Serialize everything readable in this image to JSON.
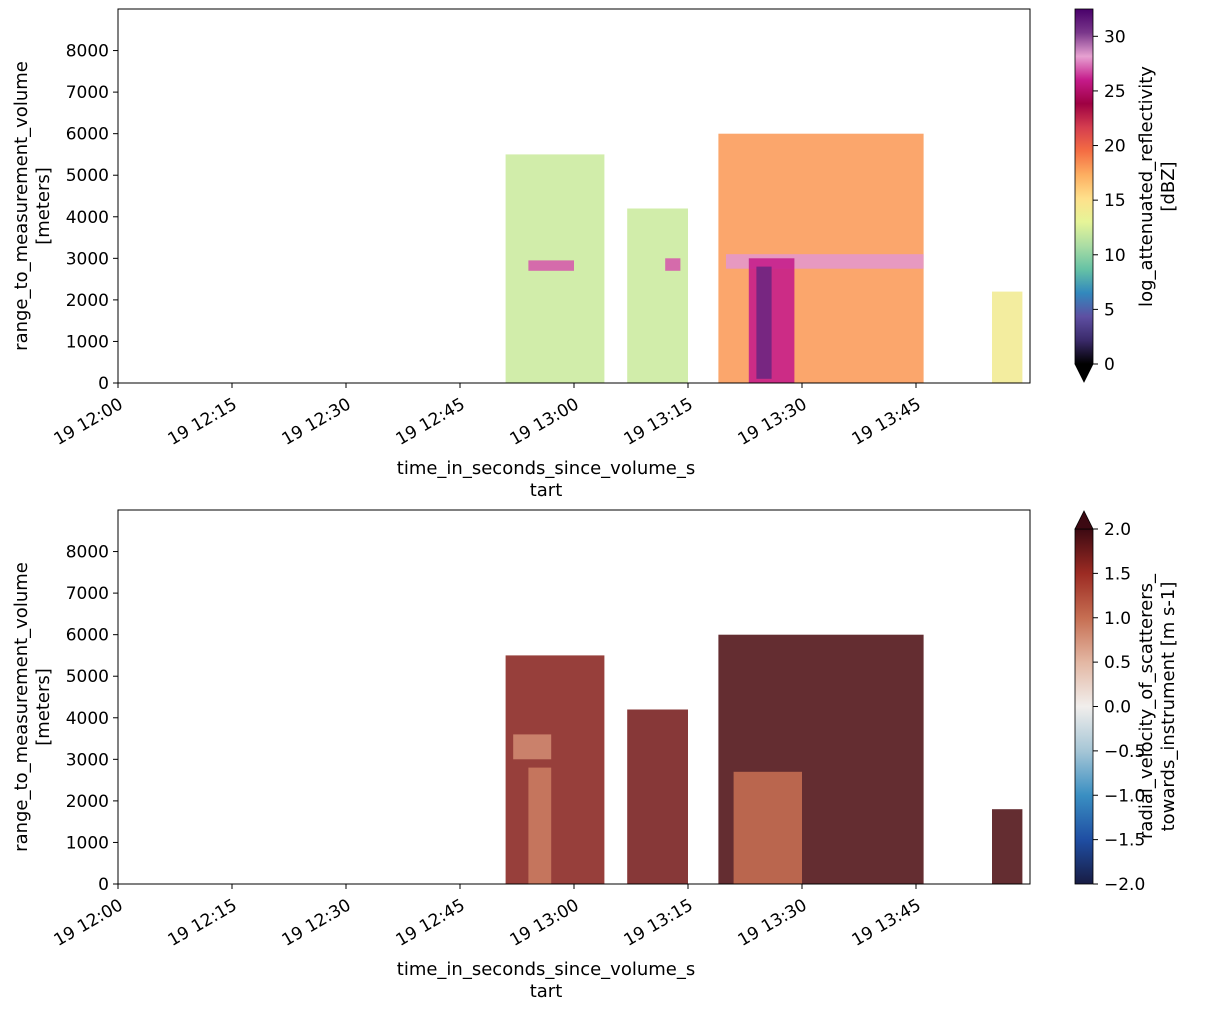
{
  "chart_data": [
    {
      "type": "heatmap",
      "variable": "log_attenuated_reflectivity",
      "xlabel": [
        "time_in_seconds_since_volume_s",
        "tart"
      ],
      "ylabel": [
        "range_to_measurement_volume",
        "[meters]"
      ],
      "x_ticks": [
        "19 12:00",
        "19 12:15",
        "19 12:30",
        "19 12:45",
        "19 13:00",
        "19 13:15",
        "19 13:30",
        "19 13:45"
      ],
      "xlim": [
        "12:00",
        "14:00"
      ],
      "y_ticks": [
        0,
        1000,
        2000,
        3000,
        4000,
        5000,
        6000,
        7000,
        8000
      ],
      "ylim": [
        0,
        9000
      ],
      "colorbar": {
        "label": [
          "log_attenuated_reflectivity",
          "[dBZ]"
        ],
        "ticks": [
          0,
          5,
          10,
          15,
          20,
          25,
          30
        ],
        "range": [
          0,
          32.5
        ],
        "extend": "min",
        "colormap": "Spectral_r-magenta",
        "stops": [
          "#000000",
          "#3a2a6a",
          "#5e4fa2",
          "#3288bd",
          "#66c2a5",
          "#abdda4",
          "#e6f598",
          "#fee08b",
          "#fdae61",
          "#f46d43",
          "#d53e4f",
          "#9e0142",
          "#c51b8a",
          "#e7a1d1",
          "#7a378b",
          "#49006a"
        ]
      },
      "features": [
        {
          "t_start": "12:51",
          "t_end": "13:04",
          "h_base": 0,
          "h_top": 5500,
          "value": 12
        },
        {
          "t_start": "12:54",
          "t_end": "13:00",
          "h_base": 2700,
          "h_top": 2950,
          "value": 27
        },
        {
          "t_start": "13:07",
          "t_end": "13:15",
          "h_base": 0,
          "h_top": 4200,
          "value": 12
        },
        {
          "t_start": "13:12",
          "t_end": "13:14",
          "h_base": 2700,
          "h_top": 3000,
          "value": 27
        },
        {
          "t_start": "13:19",
          "t_end": "13:46",
          "h_base": 0,
          "h_top": 6000,
          "value": 18
        },
        {
          "t_start": "13:20",
          "t_end": "13:46",
          "h_base": 2750,
          "h_top": 3100,
          "value": 28
        },
        {
          "t_start": "13:23",
          "t_end": "13:29",
          "h_base": 0,
          "h_top": 3000,
          "value": 26
        },
        {
          "t_start": "13:24",
          "t_end": "13:26",
          "h_base": 100,
          "h_top": 2800,
          "value": 31
        },
        {
          "t_start": "13:55",
          "t_end": "13:59",
          "h_base": 0,
          "h_top": 2200,
          "value": 14
        }
      ]
    },
    {
      "type": "heatmap",
      "variable": "radial_velocity_of_scatterers_towards_instrument",
      "xlabel": [
        "time_in_seconds_since_volume_s",
        "tart"
      ],
      "ylabel": [
        "range_to_measurement_volume",
        "[meters]"
      ],
      "x_ticks": [
        "19 12:00",
        "19 12:15",
        "19 12:30",
        "19 12:45",
        "19 13:00",
        "19 13:15",
        "19 13:30",
        "19 13:45"
      ],
      "xlim": [
        "12:00",
        "14:00"
      ],
      "y_ticks": [
        0,
        1000,
        2000,
        3000,
        4000,
        5000,
        6000,
        7000,
        8000
      ],
      "ylim": [
        0,
        9000
      ],
      "colorbar": {
        "label": [
          "radial_velocity_of_scatterers_",
          "towards_instrument [m s-1]"
        ],
        "ticks": [
          "2.0",
          "1.5",
          "1.0",
          "0.5",
          "0.0",
          "−0.5",
          "−1.0",
          "−1.5",
          "−2.0"
        ],
        "range": [
          -2.0,
          2.0
        ],
        "extend": "max",
        "colormap": "balance",
        "stops": [
          "#181c43",
          "#1f4ea3",
          "#3a8fc2",
          "#a6c6d6",
          "#f1eeec",
          "#e3b7a3",
          "#c66e52",
          "#9c2b23",
          "#3c0912"
        ]
      },
      "features": [
        {
          "t_start": "12:51",
          "t_end": "13:04",
          "h_base": 0,
          "h_top": 5500,
          "value": 1.6
        },
        {
          "t_start": "12:52",
          "t_end": "12:57",
          "h_base": 3000,
          "h_top": 3600,
          "value": 0.8
        },
        {
          "t_start": "12:54",
          "t_end": "12:57",
          "h_base": 0,
          "h_top": 2800,
          "value": 0.9
        },
        {
          "t_start": "13:07",
          "t_end": "13:15",
          "h_base": 0,
          "h_top": 4200,
          "value": 1.7
        },
        {
          "t_start": "13:19",
          "t_end": "13:46",
          "h_base": 0,
          "h_top": 6000,
          "value": 1.9
        },
        {
          "t_start": "13:21",
          "t_end": "13:30",
          "h_base": 0,
          "h_top": 2700,
          "value": 1.0
        },
        {
          "t_start": "13:55",
          "t_end": "13:59",
          "h_base": 0,
          "h_top": 1800,
          "value": 1.9
        }
      ]
    }
  ]
}
